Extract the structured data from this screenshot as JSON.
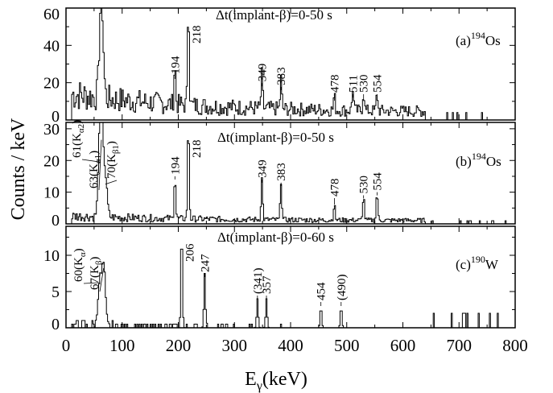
{
  "chart_data": {
    "type": "line",
    "xlabel_base": "E",
    "xlabel_sub": "γ",
    "xlabel_rest": "(keV)",
    "ylabel": "Counts / keV",
    "xlim": [
      0,
      800
    ],
    "xticks": [
      "0",
      "100",
      "200",
      "300",
      "400",
      "500",
      "600",
      "700",
      "800"
    ],
    "panels": [
      {
        "id": "a",
        "label_prefix": "(a)",
        "label_mass": "194",
        "label_element": "Os",
        "condition": "Δt(implant-β)=0-50 s",
        "ylim": [
          0,
          60
        ],
        "yticks": [
          "0",
          "20",
          "40",
          "60"
        ],
        "peaks": [
          {
            "energy": 63,
            "height": 56
          },
          {
            "energy": 194,
            "height": 22
          },
          {
            "energy": 218,
            "height": 57
          },
          {
            "energy": 349,
            "height": 18
          },
          {
            "energy": 383,
            "height": 16
          },
          {
            "energy": 478,
            "height": 8
          },
          {
            "energy": 511,
            "height": 12
          },
          {
            "energy": 530,
            "height": 10
          },
          {
            "energy": 554,
            "height": 9
          }
        ],
        "labels": [
          {
            "text": "194",
            "energy": 194
          },
          {
            "text": "218",
            "energy": 218
          },
          {
            "text": "349",
            "energy": 349
          },
          {
            "text": "383",
            "energy": 383
          },
          {
            "text": "478",
            "energy": 478
          },
          {
            "text": "511",
            "energy": 511
          },
          {
            "text": "530",
            "energy": 530
          },
          {
            "text": "554",
            "energy": 554
          }
        ]
      },
      {
        "id": "b",
        "label_prefix": "(b)",
        "label_mass": "194",
        "label_element": "Os",
        "condition": "Δt(implant-β)=0-50 s",
        "ylim": [
          0,
          32
        ],
        "yticks": [
          "0",
          "10",
          "20",
          "30"
        ],
        "peaks": [
          {
            "energy": 61,
            "height": 19
          },
          {
            "energy": 63,
            "height": 26
          },
          {
            "energy": 70,
            "height": 12
          },
          {
            "energy": 194,
            "height": 14
          },
          {
            "energy": 218,
            "height": 31
          },
          {
            "energy": 349,
            "height": 13
          },
          {
            "energy": 383,
            "height": 12
          },
          {
            "energy": 478,
            "height": 5
          },
          {
            "energy": 530,
            "height": 8
          },
          {
            "energy": 554,
            "height": 9
          }
        ],
        "labels": [
          {
            "text": "194",
            "energy": 194
          },
          {
            "text": "218",
            "energy": 218
          },
          {
            "text": "349",
            "energy": 349
          },
          {
            "text": "383",
            "energy": 383
          },
          {
            "text": "478",
            "energy": 478
          },
          {
            "text": "530",
            "energy": 530
          },
          {
            "text": "554",
            "energy": 554
          }
        ],
        "xray_labels": [
          {
            "text": "61(K",
            "sub": "α2",
            "close": ")",
            "energy": 61
          },
          {
            "text": "63(K",
            "sub": "α1",
            "close": ")",
            "energy": 63
          },
          {
            "text": "70(K",
            "sub": "β1",
            "close": ")",
            "energy": 70
          }
        ]
      },
      {
        "id": "c",
        "label_prefix": "(c)",
        "label_mass": "190",
        "label_element": "W",
        "condition": "Δt(implant-β)=0-60 s",
        "ylim": [
          0,
          14
        ],
        "yticks": [
          "0",
          "5",
          "10"
        ],
        "peaks": [
          {
            "energy": 60,
            "height": 6
          },
          {
            "energy": 67,
            "height": 8
          },
          {
            "energy": 206,
            "height": 14
          },
          {
            "energy": 247,
            "height": 7
          },
          {
            "energy": 341,
            "height": 4
          },
          {
            "energy": 357,
            "height": 4
          },
          {
            "energy": 454,
            "height": 3
          },
          {
            "energy": 490,
            "height": 3
          }
        ],
        "labels": [
          {
            "text": "206",
            "energy": 206
          },
          {
            "text": "247",
            "energy": 247
          },
          {
            "text": "(341)",
            "energy": 341
          },
          {
            "text": "357",
            "energy": 357
          },
          {
            "text": "454",
            "energy": 454
          },
          {
            "text": "(490)",
            "energy": 490
          }
        ],
        "xray_labels": [
          {
            "text": "60(K",
            "sub": "α",
            "close": ")",
            "energy": 60
          },
          {
            "text": "67(K",
            "sub": "β",
            "close": ")",
            "energy": 67
          }
        ]
      }
    ]
  }
}
